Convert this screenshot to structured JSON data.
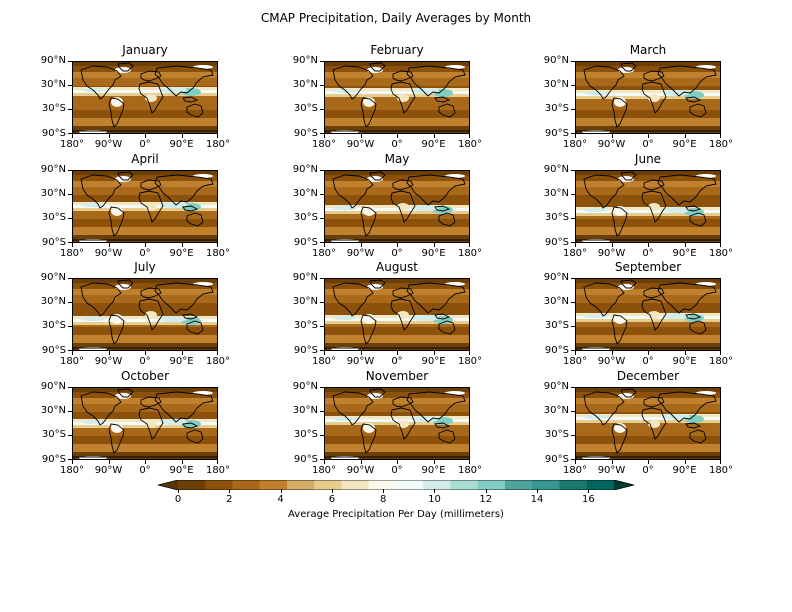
{
  "figure": {
    "title": "CMAP Precipitation, Daily Averages by Month"
  },
  "chart_data": {
    "type": "map-grid",
    "months": [
      "January",
      "February",
      "March",
      "April",
      "May",
      "June",
      "July",
      "August",
      "September",
      "October",
      "November",
      "December"
    ],
    "y_tick_labels": [
      "90°N",
      "30°N",
      "30°S",
      "90°S"
    ],
    "x_tick_labels": [
      "180°",
      "90°W",
      "0°",
      "90°E",
      "180°"
    ],
    "colorbar": {
      "label": "Average Precipitation Per Day (millimeters)",
      "ticks": [
        "0",
        "2",
        "4",
        "6",
        "8",
        "10",
        "12",
        "14",
        "16"
      ],
      "range": [
        0,
        17
      ],
      "extend": "both",
      "colors": [
        "#5a3404",
        "#6b3f06",
        "#8c510a",
        "#a8691b",
        "#bf812d",
        "#d5ad66",
        "#e6cd8d",
        "#f3e6c2",
        "#fdf8ee",
        "#f3fbfa",
        "#d2ede9",
        "#a9ddd3",
        "#80cdc1",
        "#4fa59b",
        "#35978f",
        "#1a7a70",
        "#01665e",
        "#003c30"
      ]
    }
  }
}
